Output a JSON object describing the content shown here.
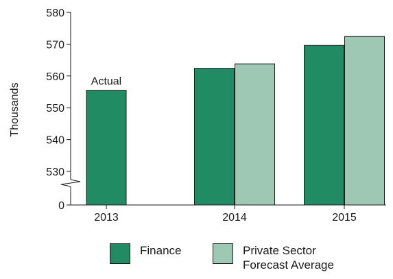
{
  "chart_data": {
    "type": "bar",
    "title": "",
    "xlabel": "",
    "ylabel": "Thousands",
    "categories": [
      "2013",
      "2014",
      "2015"
    ],
    "series": [
      {
        "name": "Finance",
        "values": [
          555.5,
          562.4,
          569.6
        ],
        "color": "#218c63"
      },
      {
        "name": "Private Sector Forecast Average",
        "values": [
          null,
          563.8,
          572.4
        ],
        "color": "#9ec7b4"
      }
    ],
    "yticks": [
      "580",
      "570",
      "560",
      "550",
      "540",
      "530",
      "0"
    ],
    "ylim": [
      525,
      580
    ],
    "axis_break": true,
    "grid": false,
    "legend_position": "bottom",
    "annotations": [
      {
        "text": "Actual",
        "category": "2013"
      }
    ]
  },
  "legend": {
    "items": [
      {
        "label": "Finance",
        "color": "#218c63"
      },
      {
        "label": "Private Sector\nForecast Average",
        "color": "#9ec7b4"
      }
    ]
  }
}
